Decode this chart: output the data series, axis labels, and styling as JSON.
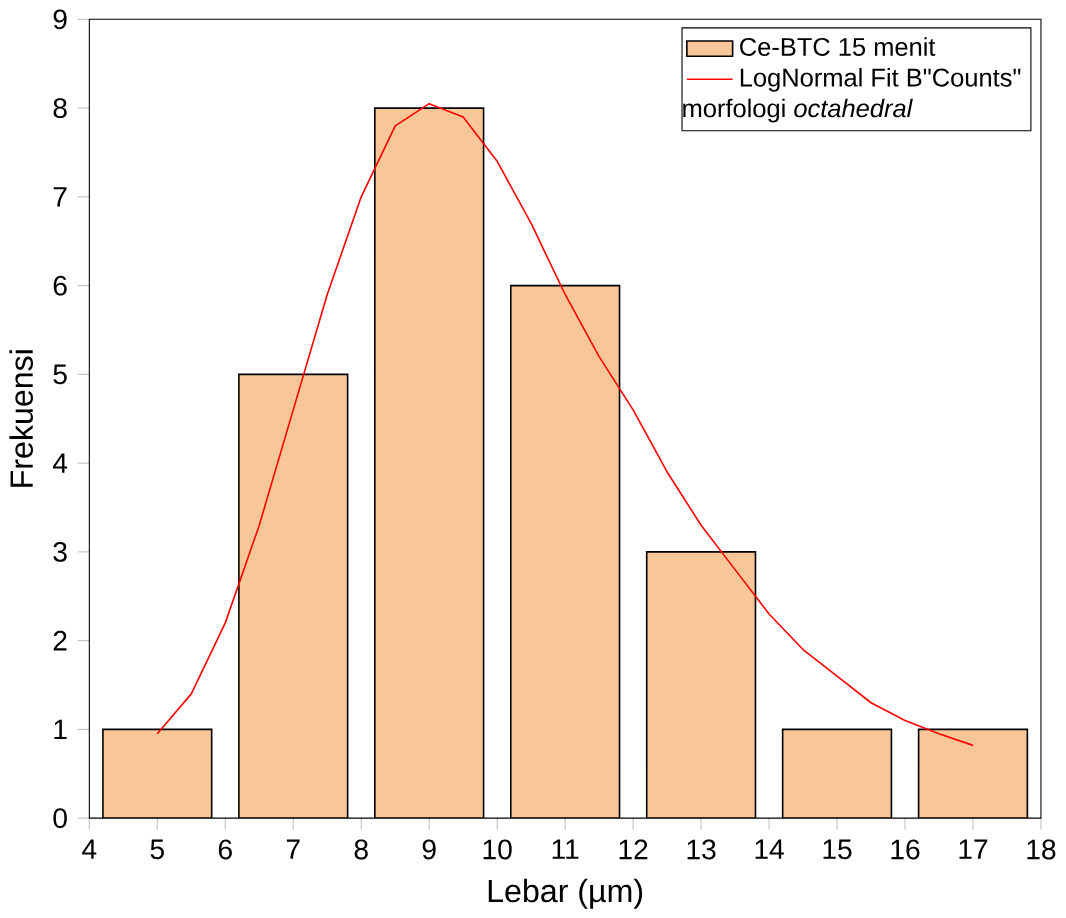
{
  "chart_data": {
    "type": "bar",
    "xlabel": "Lebar (µm)",
    "ylabel": "Frekuensi",
    "xlim": [
      4,
      18
    ],
    "xticks": [
      4,
      5,
      6,
      7,
      8,
      9,
      10,
      11,
      12,
      13,
      14,
      15,
      16,
      17,
      18
    ],
    "ylim": [
      0,
      9
    ],
    "yticks": [
      0,
      1,
      2,
      3,
      4,
      5,
      6,
      7,
      8,
      9
    ],
    "legend": "top right",
    "grid": false,
    "annotations": [
      "morfologi *octahedral*"
    ],
    "series": [
      {
        "name": "Ce-BTC 15 menit",
        "color": "#f9c797",
        "x": [
          5,
          7,
          9,
          11,
          13,
          15,
          17
        ],
        "values": [
          1,
          5,
          8,
          6,
          3,
          1,
          1
        ]
      },
      {
        "name": "LogNormal Fit B\"Counts\"",
        "type": "line",
        "color": "#ff0000",
        "marker": "none",
        "line_style": "solid",
        "x": [
          5,
          5.5,
          6,
          6.5,
          7,
          7.5,
          8,
          8.5,
          9,
          9.5,
          10,
          10.5,
          11,
          11.5,
          12,
          12.5,
          13,
          13.5,
          14,
          14.5,
          15,
          15.5,
          16,
          16.5,
          17
        ],
        "values": [
          0.95,
          1.4,
          2.2,
          3.3,
          4.6,
          5.9,
          7.0,
          7.8,
          8.05,
          7.9,
          7.4,
          6.7,
          5.9,
          5.2,
          4.6,
          3.9,
          3.3,
          2.8,
          2.3,
          1.9,
          1.6,
          1.3,
          1.1,
          0.95,
          0.82
        ]
      }
    ]
  }
}
